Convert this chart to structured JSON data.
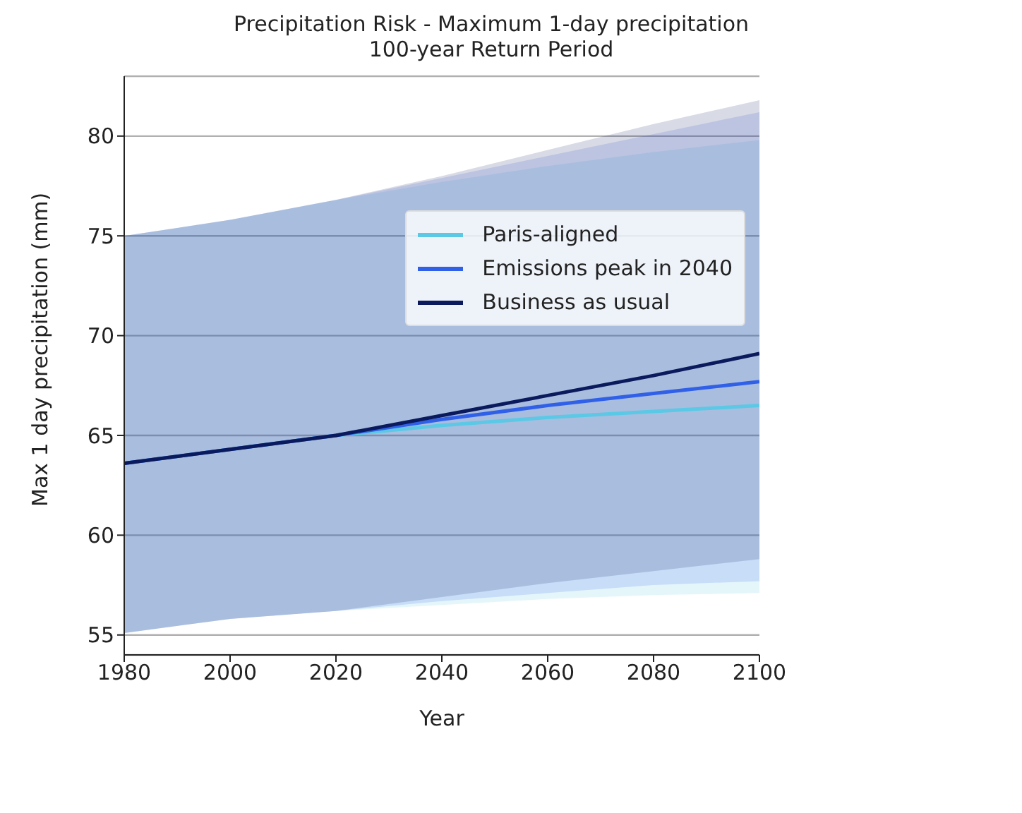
{
  "chart_data": {
    "type": "line",
    "title": "Precipitation Risk - Maximum 1-day precipitation",
    "subtitle": "100-year Return Period",
    "xlabel": "Year",
    "ylabel": "Max 1 day precipitation (mm)",
    "x": [
      1980,
      2000,
      2020,
      2040,
      2060,
      2080,
      2100
    ],
    "series": [
      {
        "name": "Paris-aligned",
        "color": "#5bc8e6",
        "values": [
          63.6,
          64.3,
          65.0,
          65.5,
          65.9,
          66.2,
          66.5
        ],
        "lower": [
          55.1,
          55.8,
          56.2,
          56.5,
          56.8,
          57.0,
          57.1
        ],
        "upper": [
          75.0,
          75.8,
          76.8,
          77.7,
          78.5,
          79.2,
          79.8
        ]
      },
      {
        "name": "Emissions peak in 2040",
        "color": "#3060e8",
        "values": [
          63.6,
          64.3,
          65.0,
          65.8,
          66.5,
          67.1,
          67.7
        ],
        "lower": [
          55.1,
          55.8,
          56.2,
          56.7,
          57.1,
          57.5,
          57.7
        ],
        "upper": [
          75.0,
          75.8,
          76.8,
          77.9,
          79.0,
          80.1,
          81.2
        ]
      },
      {
        "name": "Business as usual",
        "color": "#0a1a5c",
        "values": [
          63.6,
          64.3,
          65.0,
          66.0,
          67.0,
          68.0,
          69.1
        ],
        "lower": [
          55.1,
          55.8,
          56.2,
          56.9,
          57.6,
          58.2,
          58.8
        ],
        "upper": [
          75.0,
          75.8,
          76.8,
          78.0,
          79.3,
          80.6,
          81.8
        ]
      }
    ],
    "xlim": [
      1980,
      2100
    ],
    "xticks": [
      1980,
      2000,
      2020,
      2040,
      2060,
      2080,
      2100
    ],
    "ylim": [
      54,
      83
    ],
    "yticks": [
      55,
      60,
      65,
      70,
      75,
      80
    ],
    "grid": "y",
    "legend": "top right",
    "marker": "none",
    "line_style": "solid"
  }
}
